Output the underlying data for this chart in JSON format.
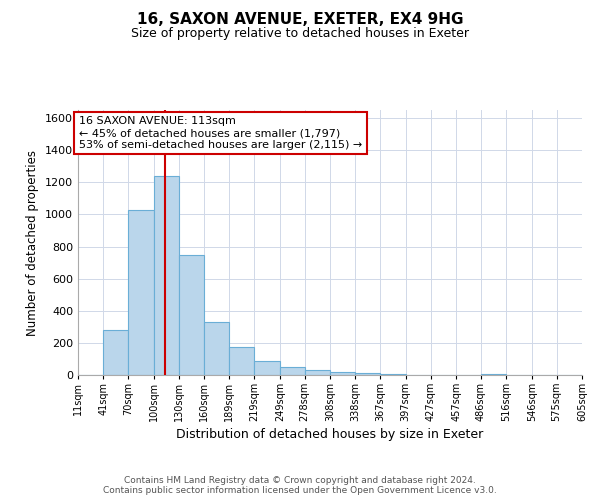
{
  "title": "16, SAXON AVENUE, EXETER, EX4 9HG",
  "subtitle": "Size of property relative to detached houses in Exeter",
  "xlabel": "Distribution of detached houses by size in Exeter",
  "ylabel": "Number of detached properties",
  "bar_color": "#bad6eb",
  "bar_edge_color": "#6aaed6",
  "bin_edges": [
    11,
    41,
    70,
    100,
    130,
    160,
    189,
    219,
    249,
    278,
    308,
    338,
    367,
    397,
    427,
    457,
    486,
    516,
    546,
    575,
    605
  ],
  "bar_heights": [
    0,
    280,
    1030,
    1240,
    750,
    330,
    175,
    85,
    50,
    30,
    20,
    10,
    5,
    0,
    0,
    0,
    5,
    0,
    0,
    0
  ],
  "vline_x": 113,
  "vline_color": "#cc0000",
  "annotation_line1": "16 SAXON AVENUE: 113sqm",
  "annotation_line2": "← 45% of detached houses are smaller (1,797)",
  "annotation_line3": "53% of semi-detached houses are larger (2,115) →",
  "annotation_box_color": "#ffffff",
  "annotation_box_edge": "#cc0000",
  "ylim": [
    0,
    1650
  ],
  "yticks": [
    0,
    200,
    400,
    600,
    800,
    1000,
    1200,
    1400,
    1600
  ],
  "tick_labels": [
    "11sqm",
    "41sqm",
    "70sqm",
    "100sqm",
    "130sqm",
    "160sqm",
    "189sqm",
    "219sqm",
    "249sqm",
    "278sqm",
    "308sqm",
    "338sqm",
    "367sqm",
    "397sqm",
    "427sqm",
    "457sqm",
    "486sqm",
    "516sqm",
    "546sqm",
    "575sqm",
    "605sqm"
  ],
  "footer_line1": "Contains HM Land Registry data © Crown copyright and database right 2024.",
  "footer_line2": "Contains public sector information licensed under the Open Government Licence v3.0.",
  "background_color": "#ffffff",
  "grid_color": "#d0d8e8"
}
